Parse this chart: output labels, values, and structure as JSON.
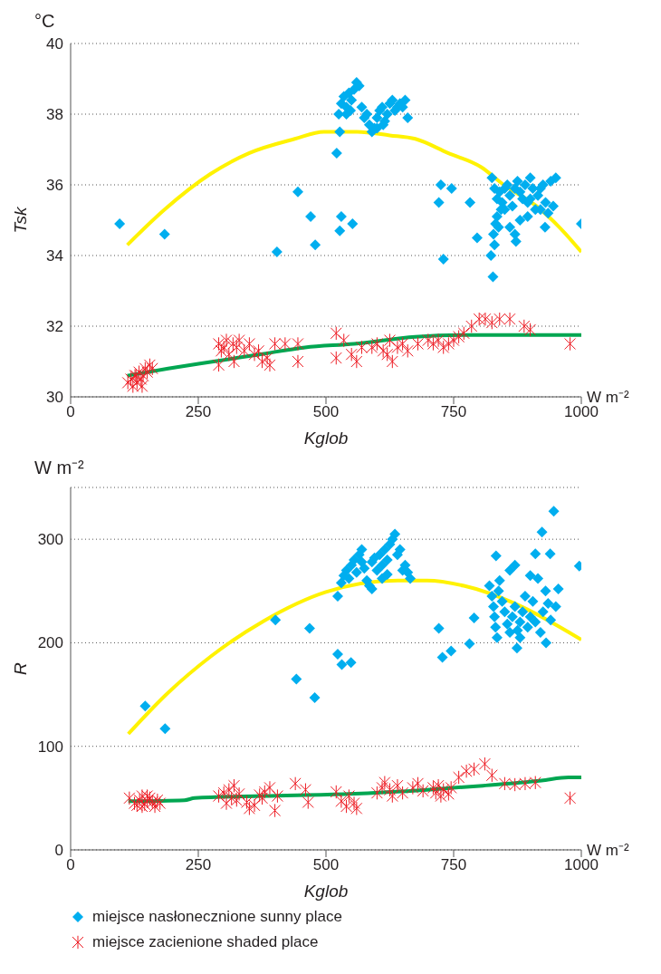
{
  "chart_data": [
    {
      "type": "scatter",
      "ylabel": "Tsk",
      "xlabel": "Kglob",
      "annotations": [
        "°C",
        "W m⁻²"
      ],
      "xlim": [
        0,
        1000
      ],
      "xticks": [
        0,
        250,
        500,
        750,
        1000
      ],
      "ylim": [
        30,
        40
      ],
      "yticks": [
        30,
        32,
        34,
        36,
        38,
        40
      ],
      "grid": "y",
      "series": [
        {
          "marker": "diamond",
          "color": "#00aeef",
          "x": [
            96,
            184,
            404,
            445,
            470,
            479,
            527,
            530,
            552,
            521,
            527,
            725,
            746,
            721,
            730,
            782,
            796,
            827,
            823,
            1000,
            929,
            525,
            530,
            535,
            540,
            545,
            550,
            555,
            560,
            565,
            548,
            540,
            570,
            575,
            580,
            585,
            590,
            595,
            600,
            605,
            610,
            615,
            620,
            625,
            630,
            635,
            640,
            645,
            650,
            655,
            660,
            600,
            612,
            825,
            830,
            835,
            840,
            845,
            850,
            855,
            860,
            865,
            870,
            875,
            880,
            885,
            890,
            895,
            900,
            905,
            910,
            915,
            920,
            925,
            930,
            940,
            950,
            945,
            935,
            880,
            895,
            860,
            870,
            872,
            828,
            832,
            835,
            838,
            830,
            843,
            850,
            900,
            920
          ],
          "values": [
            34.9,
            34.6,
            34.1,
            35.8,
            35.1,
            34.3,
            34.7,
            35.1,
            34.9,
            36.9,
            37.5,
            36.0,
            35.9,
            35.5,
            33.9,
            35.5,
            34.5,
            33.4,
            34.0,
            34.9,
            34.8,
            38.0,
            38.3,
            38.5,
            38.2,
            38.6,
            38.4,
            38.7,
            38.9,
            38.8,
            38.1,
            38.0,
            38.2,
            37.9,
            38.0,
            37.7,
            37.5,
            37.6,
            37.9,
            38.1,
            38.2,
            37.8,
            38.0,
            38.3,
            38.4,
            38.1,
            38.2,
            38.3,
            38.2,
            38.4,
            37.9,
            37.6,
            37.7,
            36.2,
            35.9,
            35.6,
            35.8,
            35.5,
            35.9,
            36.0,
            35.7,
            35.4,
            35.9,
            36.1,
            35.8,
            35.6,
            36.0,
            35.5,
            36.2,
            35.9,
            35.3,
            35.7,
            35.9,
            36.0,
            35.5,
            36.1,
            36.2,
            35.4,
            35.2,
            35.0,
            35.1,
            34.8,
            34.6,
            34.4,
            34.6,
            34.9,
            35.1,
            34.8,
            34.3,
            35.3,
            35.3,
            35.6,
            35.3
          ]
        },
        {
          "marker": "cross",
          "color": "#ed1c24",
          "x": [
            112,
            118,
            122,
            126,
            130,
            134,
            138,
            142,
            146,
            150,
            155,
            160,
            140,
            128,
            290,
            295,
            300,
            305,
            310,
            318,
            325,
            330,
            290,
            320,
            340,
            350,
            360,
            368,
            375,
            385,
            390,
            400,
            420,
            445,
            445,
            520,
            535,
            520,
            550,
            560,
            570,
            590,
            600,
            612,
            620,
            625,
            630,
            640,
            650,
            660,
            680,
            700,
            710,
            720,
            730,
            740,
            750,
            760,
            770,
            785,
            800,
            812,
            825,
            840,
            860,
            888,
            900,
            978
          ],
          "values": [
            30.4,
            30.5,
            30.3,
            30.6,
            30.4,
            30.7,
            30.5,
            30.6,
            30.8,
            30.7,
            30.9,
            30.8,
            30.3,
            30.6,
            31.5,
            31.3,
            31.4,
            31.6,
            31.2,
            31.5,
            31.4,
            31.6,
            30.9,
            31.0,
            31.3,
            31.5,
            31.2,
            31.3,
            31.0,
            31.1,
            30.9,
            31.5,
            31.5,
            31.5,
            31.0,
            31.8,
            31.6,
            31.1,
            31.2,
            31.0,
            31.4,
            31.4,
            31.5,
            31.3,
            31.2,
            31.6,
            31.0,
            31.4,
            31.5,
            31.3,
            31.5,
            31.6,
            31.5,
            31.6,
            31.4,
            31.5,
            31.6,
            31.7,
            31.8,
            32.0,
            32.2,
            32.2,
            32.1,
            32.2,
            32.2,
            32.0,
            31.9,
            31.5
          ]
        },
        {
          "type": "line",
          "marker": "none",
          "color": "#fff200",
          "x": [
            111,
            184,
            273,
            350,
            439,
            496,
            561,
            625,
            675,
            739,
            804,
            848,
            912,
            957,
            1000
          ],
          "values": [
            34.3,
            35.3,
            36.3,
            36.9,
            37.3,
            37.5,
            37.5,
            37.4,
            37.3,
            36.9,
            36.5,
            36.0,
            35.4,
            34.8,
            34.1
          ]
        },
        {
          "type": "line",
          "marker": "none",
          "color": "#00a651",
          "x": [
            111,
            191,
            280,
            370,
            459,
            555,
            675,
            779,
            1000
          ],
          "values": [
            30.6,
            30.8,
            31.0,
            31.2,
            31.4,
            31.5,
            31.7,
            31.75,
            31.75
          ]
        }
      ]
    },
    {
      "type": "scatter",
      "ylabel": "R",
      "xlabel": "Kglob",
      "annotations": [
        "W m⁻²",
        "W m⁻²"
      ],
      "xlim": [
        0,
        1000
      ],
      "xticks": [
        0,
        250,
        500,
        750,
        1000
      ],
      "ylim": [
        0,
        350
      ],
      "yticks": [
        0,
        100,
        200,
        300
      ],
      "grid": "y",
      "legend": "bottom",
      "series": [
        {
          "name": "miejsce nasłonecznione  sunny place",
          "marker": "diamond",
          "color": "#00aeef",
          "x": [
            146,
            185,
            401,
            468,
            442,
            478,
            523,
            531,
            549,
            523,
            721,
            728,
            745,
            781,
            790,
            946,
            923,
            910,
            939,
            996,
            833,
            955,
            931,
            874,
            530,
            535,
            540,
            545,
            550,
            555,
            560,
            565,
            570,
            575,
            580,
            585,
            590,
            595,
            600,
            605,
            610,
            615,
            620,
            625,
            630,
            635,
            640,
            645,
            650,
            655,
            660,
            665,
            610,
            590,
            570,
            620,
            820,
            825,
            828,
            830,
            832,
            835,
            838,
            840,
            845,
            850,
            855,
            860,
            865,
            870,
            875,
            880,
            885,
            890,
            895,
            900,
            905,
            910,
            915,
            920,
            925,
            930,
            935,
            940,
            950,
            880,
            860,
            900,
            870
          ],
          "values": [
            139,
            117,
            222,
            214,
            165,
            147,
            189,
            179,
            181,
            245,
            214,
            186,
            192,
            199,
            224,
            327,
            307,
            286,
            286,
            274,
            284,
            252,
            200,
            195,
            258,
            265,
            270,
            262,
            275,
            280,
            268,
            285,
            290,
            272,
            260,
            255,
            278,
            282,
            270,
            285,
            275,
            290,
            280,
            295,
            300,
            305,
            285,
            290,
            270,
            275,
            268,
            262,
            262,
            252,
            278,
            266,
            255,
            245,
            235,
            225,
            215,
            205,
            250,
            260,
            240,
            230,
            218,
            270,
            225,
            235,
            212,
            220,
            230,
            245,
            215,
            225,
            240,
            220,
            262,
            210,
            230,
            250,
            238,
            222,
            235,
            205,
            210,
            265,
            275
          ]
        },
        {
          "name": "miejsce zacienione shaded place",
          "marker": "cross",
          "color": "#ed1c24",
          "x": [
            115,
            125,
            130,
            135,
            140,
            145,
            150,
            155,
            160,
            165,
            170,
            175,
            150,
            140,
            290,
            300,
            305,
            310,
            315,
            320,
            325,
            330,
            345,
            350,
            360,
            370,
            375,
            380,
            390,
            400,
            405,
            440,
            460,
            465,
            520,
            530,
            540,
            545,
            555,
            560,
            600,
            610,
            615,
            625,
            630,
            640,
            650,
            670,
            680,
            690,
            710,
            715,
            720,
            725,
            730,
            740,
            745,
            760,
            775,
            790,
            811,
            825,
            850,
            870,
            890,
            910,
            978
          ],
          "values": [
            50,
            45,
            43,
            48,
            52,
            44,
            47,
            50,
            46,
            42,
            48,
            45,
            52,
            42,
            52,
            55,
            45,
            58,
            50,
            62,
            48,
            54,
            46,
            40,
            43,
            53,
            50,
            56,
            60,
            38,
            52,
            64,
            58,
            46,
            56,
            47,
            42,
            52,
            45,
            40,
            55,
            60,
            65,
            58,
            52,
            62,
            55,
            60,
            64,
            57,
            60,
            55,
            62,
            52,
            58,
            54,
            60,
            70,
            76,
            78,
            83,
            72,
            64,
            63,
            64,
            65,
            50
          ]
        },
        {
          "type": "line",
          "marker": "none",
          "color": "#fff200",
          "x": [
            113,
            185,
            275,
            378,
            500,
            640,
            698,
            770,
            865,
            1000
          ],
          "values": [
            112,
            149,
            187,
            221,
            249,
            260,
            260,
            255,
            239,
            203
          ]
        },
        {
          "type": "line",
          "marker": "none",
          "color": "#00a651",
          "x": [
            113,
            223,
            243,
            378,
            545,
            698,
            807,
            922,
            975,
            1000
          ],
          "values": [
            47,
            48,
            50,
            52,
            54,
            58,
            62,
            67,
            70,
            70
          ]
        }
      ]
    }
  ]
}
